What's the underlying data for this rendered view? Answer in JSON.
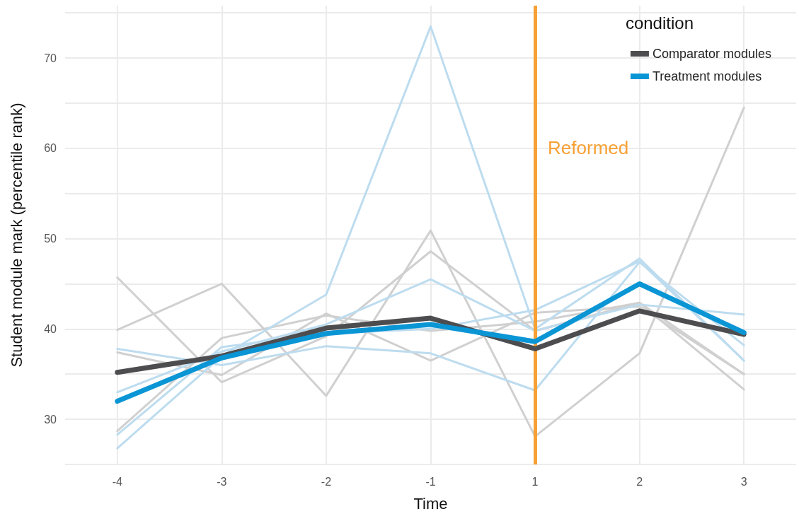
{
  "chart_data": {
    "type": "line",
    "xlabel": "Time",
    "ylabel": "Student module mark (percentile rank)",
    "legend_title": "condition",
    "legend": "top right",
    "grid": true,
    "categories": [
      "-4",
      "-3",
      "-2",
      "-1",
      "1",
      "2",
      "3"
    ],
    "ylim": [
      25,
      75.8
    ],
    "yticks": [
      {
        "value": 25,
        "label": null
      },
      30,
      {
        "value": 35,
        "label": null
      },
      40,
      {
        "value": 45,
        "label": null
      },
      50,
      {
        "value": 55,
        "label": null
      },
      60,
      {
        "value": 65,
        "label": null
      },
      70,
      {
        "value": 75,
        "label": null
      }
    ],
    "ref_lines": [
      {
        "axis": "x",
        "value": "1",
        "label": "Reformed",
        "color": "#f7a035"
      }
    ],
    "series": [
      {
        "color": "#d0d0d0",
        "values": [
          39.9,
          45.0,
          32.6,
          50.9,
          28.1,
          37.3,
          64.5
        ]
      },
      {
        "color": "#d0d0d0",
        "values": [
          45.7,
          34.1,
          39.2,
          48.6,
          39.8,
          42.9,
          33.3
        ]
      },
      {
        "color": "#d0d0d0",
        "values": [
          37.4,
          34.9,
          41.7,
          36.5,
          41.8,
          42.5,
          35.0
        ]
      },
      {
        "color": "#d0d0d0",
        "values": [
          28.7,
          39.0,
          41.5,
          39.8,
          40.8,
          42.9,
          35.0
        ]
      },
      {
        "color": "#bddcef",
        "values": [
          26.8,
          37.0,
          43.8,
          73.5,
          40.0,
          47.8,
          36.5
        ]
      },
      {
        "color": "#bddcef",
        "values": [
          37.8,
          36.0,
          38.1,
          37.3,
          33.2,
          47.4,
          38.2
        ]
      },
      {
        "color": "#bddcef",
        "values": [
          33.0,
          37.5,
          40.5,
          45.5,
          39.8,
          42.7,
          41.6
        ]
      },
      {
        "color": "#bddcef",
        "values": [
          28.3,
          38.0,
          39.5,
          40.0,
          42.1,
          47.5,
          36.5
        ]
      },
      {
        "name": "Comparator modules",
        "color": "#4d4d4f",
        "values": [
          35.2,
          37.0,
          40.1,
          41.2,
          37.8,
          42.0,
          39.4
        ]
      },
      {
        "name": "Treatment modules",
        "color": "#0a95d5",
        "values": [
          32.0,
          36.8,
          39.5,
          40.5,
          38.6,
          45.0,
          39.6
        ]
      }
    ]
  }
}
